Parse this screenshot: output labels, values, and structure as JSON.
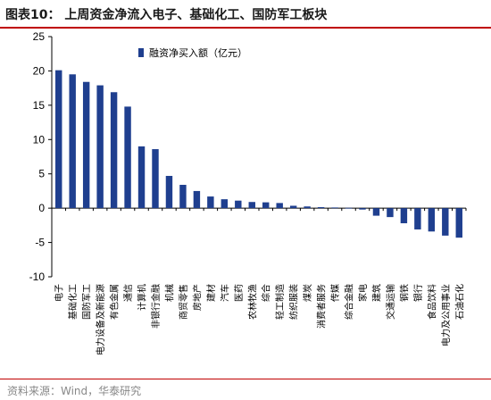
{
  "figure": {
    "title": "图表10： 上周资金净流入电子、基础化工、国防军工板块",
    "source": "资料来源：Wind，华泰研究"
  },
  "chart_data": {
    "type": "bar",
    "categories": [
      "电子",
      "基础化工",
      "国防军工",
      "电力设备及新能源",
      "有色金属",
      "通信",
      "计算机",
      "非银行金融",
      "机械",
      "商贸零售",
      "房地产",
      "建材",
      "汽车",
      "医药",
      "农林牧渔",
      "综合",
      "轻工制造",
      "纺织服装",
      "煤炭",
      "消费者服务",
      "传媒",
      "综合金融",
      "家电",
      "建筑",
      "交通运输",
      "钢铁",
      "银行",
      "食品饮料",
      "电力及公用事业",
      "石油石化"
    ],
    "series": [
      {
        "name": "融资净买入额（亿元）",
        "values": [
          20.1,
          19.5,
          18.4,
          17.9,
          16.9,
          14.8,
          9.0,
          8.6,
          4.7,
          3.4,
          2.5,
          1.7,
          1.3,
          1.1,
          0.9,
          0.85,
          0.75,
          0.35,
          0.25,
          0.15,
          0.1,
          0.05,
          -0.2,
          -1.1,
          -1.3,
          -2.2,
          -3.1,
          -3.4,
          -4.0,
          -4.3
        ]
      }
    ],
    "ylim": [
      -10,
      25
    ],
    "yticks": [
      -10,
      -5,
      0,
      5,
      10,
      15,
      20,
      25
    ],
    "ytick_labels": [
      "-10",
      "-5",
      "0",
      "5",
      "10",
      "15",
      "20",
      "25"
    ],
    "bar_color": "#1f3f8f",
    "legend_position": "top-center",
    "grid": false
  }
}
